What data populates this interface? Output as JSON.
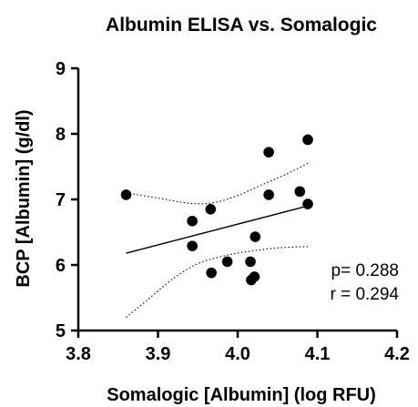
{
  "chart_data": {
    "type": "scatter",
    "title": "Albumin ELISA vs. Somalogic",
    "xlabel": "Somalogic [Albumin] (log RFU)",
    "ylabel": "BCP [Albumin] (g/dl)",
    "xlim": [
      3.8,
      4.2
    ],
    "ylim": [
      5,
      9
    ],
    "xticks": [
      3.8,
      3.9,
      4.0,
      4.1,
      4.2
    ],
    "xtick_labels": [
      "3.8",
      "3.9",
      "4.0",
      "4.1",
      "4.2"
    ],
    "yticks": [
      5,
      6,
      7,
      8,
      9
    ],
    "ytick_labels": [
      "5",
      "6",
      "7",
      "8",
      "9"
    ],
    "grid": false,
    "points": [
      {
        "x": 3.86,
        "y": 7.07
      },
      {
        "x": 3.943,
        "y": 6.67
      },
      {
        "x": 3.943,
        "y": 6.29
      },
      {
        "x": 3.966,
        "y": 6.85
      },
      {
        "x": 3.967,
        "y": 5.88
      },
      {
        "x": 3.987,
        "y": 6.05
      },
      {
        "x": 4.016,
        "y": 6.05
      },
      {
        "x": 4.017,
        "y": 5.77
      },
      {
        "x": 4.021,
        "y": 5.82
      },
      {
        "x": 4.022,
        "y": 6.43
      },
      {
        "x": 4.039,
        "y": 7.07
      },
      {
        "x": 4.039,
        "y": 7.72
      },
      {
        "x": 4.078,
        "y": 7.12
      },
      {
        "x": 4.088,
        "y": 6.93
      },
      {
        "x": 4.088,
        "y": 7.91
      }
    ],
    "regression": {
      "x": [
        3.86,
        4.088
      ],
      "y": [
        6.18,
        6.9
      ]
    },
    "confidence_band": {
      "upper": [
        {
          "x": 3.86,
          "y": 7.1
        },
        {
          "x": 3.9,
          "y": 7.02
        },
        {
          "x": 3.94,
          "y": 6.94
        },
        {
          "x": 3.97,
          "y": 6.95
        },
        {
          "x": 4.0,
          "y": 7.06
        },
        {
          "x": 4.03,
          "y": 7.22
        },
        {
          "x": 4.06,
          "y": 7.38
        },
        {
          "x": 4.088,
          "y": 7.55
        }
      ],
      "lower": [
        {
          "x": 3.86,
          "y": 5.2
        },
        {
          "x": 3.89,
          "y": 5.5
        },
        {
          "x": 3.92,
          "y": 5.8
        },
        {
          "x": 3.95,
          "y": 6.02
        },
        {
          "x": 3.98,
          "y": 6.13
        },
        {
          "x": 4.01,
          "y": 6.2
        },
        {
          "x": 4.05,
          "y": 6.26
        },
        {
          "x": 4.088,
          "y": 6.28
        }
      ]
    },
    "annotations": {
      "p": "p= 0.288",
      "r": "r = 0.294"
    }
  }
}
